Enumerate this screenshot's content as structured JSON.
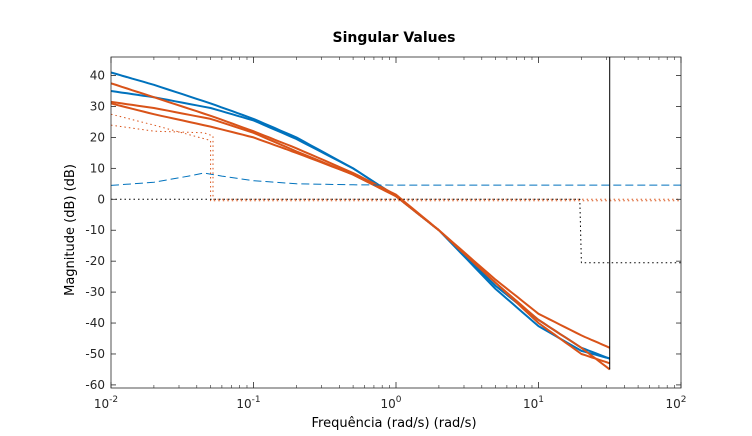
{
  "chart_data": {
    "type": "line",
    "title": "Singular Values",
    "xlabel": "Frequência (rad/s) (rad/s)",
    "ylabel": "Magnitude (dB) (dB)",
    "xscale": "log",
    "xlim": [
      0.01,
      100
    ],
    "ylim": [
      -61,
      46
    ],
    "grid": false,
    "legend": "none",
    "xticks": [
      {
        "base": "10",
        "exp": "-2",
        "value": 0.01
      },
      {
        "base": "10",
        "exp": "-1",
        "value": 0.1
      },
      {
        "base": "10",
        "exp": "0",
        "value": 1
      },
      {
        "base": "10",
        "exp": "1",
        "value": 10
      },
      {
        "base": "10",
        "exp": "2",
        "value": 100
      }
    ],
    "yticks": [
      "40",
      "30",
      "20",
      "10",
      "0",
      "-10",
      "-20",
      "-30",
      "-40",
      "-50",
      "-60"
    ],
    "colors": {
      "blue": "#0072BD",
      "orange": "#D95319"
    },
    "vertical_line_x": 31.6,
    "series": [
      {
        "color": "#0072BD",
        "style": "solid",
        "x": [
          0.01,
          0.02,
          0.05,
          0.1,
          0.2,
          0.5,
          1,
          2,
          5,
          10,
          20,
          31.6
        ],
        "y": [
          41,
          37,
          31,
          26,
          20,
          10,
          1,
          -10,
          -29,
          -41,
          -49,
          -51.5
        ]
      },
      {
        "color": "#0072BD",
        "style": "solid",
        "x": [
          0.01,
          0.02,
          0.05,
          0.1,
          0.2,
          0.5,
          1,
          2,
          5,
          10,
          20,
          31.6
        ],
        "y": [
          35,
          33,
          29.5,
          25.5,
          19.5,
          10,
          1,
          -10,
          -28,
          -39,
          -48,
          -51.5
        ]
      },
      {
        "color": "#D95319",
        "style": "solid",
        "x": [
          0.01,
          0.02,
          0.05,
          0.1,
          0.2,
          0.5,
          1,
          2,
          5,
          10,
          20,
          31.6
        ],
        "y": [
          37.5,
          33,
          27,
          22,
          16.5,
          8.5,
          1.5,
          -10,
          -26,
          -37,
          -44,
          -48
        ]
      },
      {
        "color": "#D95319",
        "style": "solid",
        "x": [
          0.01,
          0.02,
          0.05,
          0.1,
          0.2,
          0.5,
          1,
          2,
          5,
          10,
          20,
          31.6
        ],
        "y": [
          31,
          27.5,
          23.5,
          20,
          15,
          8,
          1,
          -10,
          -27,
          -39,
          -48,
          -55
        ]
      },
      {
        "color": "#D95319",
        "style": "solid",
        "x": [
          0.01,
          0.02,
          0.05,
          0.1,
          0.2,
          0.5,
          1,
          2,
          5,
          10,
          20,
          31.6
        ],
        "y": [
          31.5,
          29.5,
          26,
          21.5,
          15.5,
          8,
          1,
          -10,
          -27,
          -40,
          -50,
          -53
        ]
      },
      {
        "color": "#0072BD",
        "style": "dashed",
        "x": [
          0.01,
          0.02,
          0.035,
          0.045,
          0.06,
          0.1,
          0.2,
          0.5,
          1,
          100
        ],
        "y": [
          4.5,
          5.5,
          7.5,
          8.5,
          7.5,
          6,
          5,
          4.7,
          4.6,
          4.6
        ]
      },
      {
        "color": "#D95319",
        "style": "dotted",
        "x": [
          0.01,
          0.02,
          0.05,
          0.05,
          0.1,
          1,
          100
        ],
        "y": [
          27.5,
          24,
          19,
          -0.5,
          -0.5,
          -0.5,
          -0.5
        ]
      },
      {
        "color": "#D95319",
        "style": "dotted",
        "x": [
          0.01,
          0.02,
          0.045,
          0.048,
          0.052,
          0.052,
          0.1,
          1,
          100
        ],
        "y": [
          24,
          22,
          21.5,
          21,
          20.5,
          0,
          0,
          0,
          0
        ]
      },
      {
        "color": "#000000",
        "style": "dotted",
        "x": [
          0.01,
          0.1,
          1,
          10,
          19.5,
          20,
          100
        ],
        "y": [
          0,
          0,
          0,
          0,
          0,
          -20.5,
          -20.5
        ]
      }
    ]
  }
}
